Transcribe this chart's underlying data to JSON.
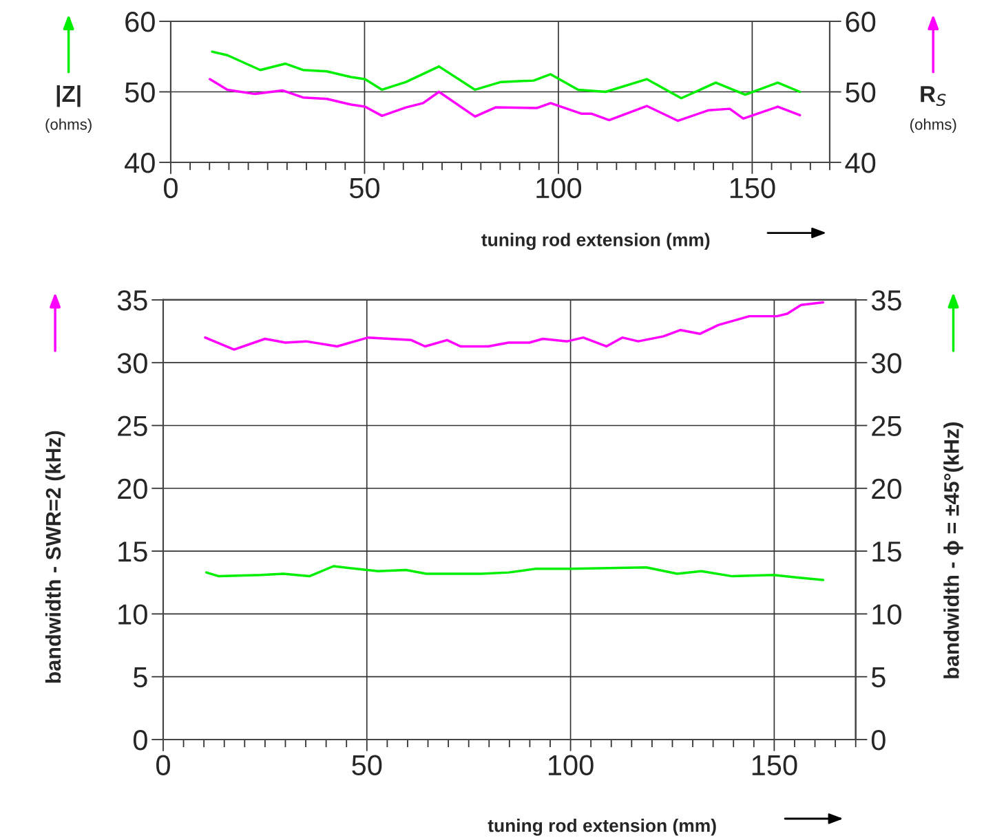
{
  "chart_data": [
    {
      "type": "line",
      "xlabel": "tuning rod extension (mm)",
      "ylabel": "|Z|\n(ohms)",
      "y2label": "R$_{S}$\n(ohms)",
      "grid": true,
      "xlim": [
        0,
        170
      ],
      "xticks": [
        0,
        {
          "value": 5,
          "label": null
        },
        {
          "value": 10,
          "label": null
        },
        {
          "value": 15,
          "label": null
        },
        {
          "value": 20,
          "label": null
        },
        {
          "value": 25,
          "label": null
        },
        {
          "value": 30,
          "label": null
        },
        {
          "value": 35,
          "label": null
        },
        {
          "value": 40,
          "label": null
        },
        {
          "value": 45,
          "label": null
        },
        50,
        {
          "value": 55,
          "label": null
        },
        {
          "value": 60,
          "label": null
        },
        {
          "value": 65,
          "label": null
        },
        {
          "value": 70,
          "label": null
        },
        {
          "value": 75,
          "label": null
        },
        {
          "value": 80,
          "label": null
        },
        {
          "value": 85,
          "label": null
        },
        {
          "value": 90,
          "label": null
        },
        {
          "value": 95,
          "label": null
        },
        100,
        {
          "value": 105,
          "label": null
        },
        {
          "value": 110,
          "label": null
        },
        {
          "value": 115,
          "label": null
        },
        {
          "value": 120,
          "label": null
        },
        {
          "value": 125,
          "label": null
        },
        {
          "value": 130,
          "label": null
        },
        {
          "value": 135,
          "label": null
        },
        {
          "value": 140,
          "label": null
        },
        {
          "value": 145,
          "label": null
        },
        150,
        {
          "value": 155,
          "label": null
        },
        {
          "value": 160,
          "label": null
        },
        {
          "value": 165,
          "label": null
        },
        {
          "value": 170,
          "label": null
        }
      ],
      "ylim": [
        40,
        60
      ],
      "yticks": [
        40,
        50,
        60
      ],
      "y2lim": [
        40,
        60
      ],
      "y2ticks": [
        40,
        50,
        60
      ],
      "series": [
        {
          "color": "#00ee00",
          "axis": "y",
          "x": [
            10.7,
            14.6,
            23.1,
            29.6,
            34.1,
            40.3,
            46.5,
            50.1,
            54.5,
            60.7,
            69.2,
            78.5,
            85.2,
            93.6,
            98.0,
            105.1,
            112.2,
            122.8,
            131.7,
            140.6,
            148.2,
            156.6,
            162.3
          ],
          "values": [
            55.7,
            55.2,
            53.1,
            54.0,
            53.1,
            52.9,
            52.1,
            51.8,
            50.3,
            51.4,
            53.6,
            50.3,
            51.4,
            51.6,
            52.5,
            50.3,
            50.0,
            51.8,
            49.1,
            51.3,
            49.6,
            51.3,
            50.0
          ]
        },
        {
          "color": "#ff00ff",
          "axis": "y2",
          "x": [
            10.1,
            14.6,
            21.7,
            28.8,
            34.1,
            40.3,
            46.5,
            50.1,
            54.5,
            60.7,
            65.1,
            69.2,
            78.5,
            83.8,
            94.4,
            98.0,
            106.0,
            108.6,
            113.1,
            122.8,
            130.8,
            138.8,
            144.2,
            147.7,
            156.6,
            162.3
          ],
          "values": [
            51.8,
            50.3,
            49.7,
            50.2,
            49.2,
            49.0,
            48.2,
            47.9,
            46.6,
            47.8,
            48.4,
            50.0,
            46.5,
            47.8,
            47.7,
            48.4,
            46.9,
            46.9,
            46.0,
            48.0,
            45.9,
            47.4,
            47.6,
            46.2,
            47.9,
            46.7
          ]
        }
      ]
    },
    {
      "type": "line",
      "xlabel": "tuning rod extension (mm)",
      "ylabel": "bandwidth - SWR=2 (kHz)",
      "y2label": "bandwidth - ϕ = ±45°(kHz)",
      "grid": true,
      "xlim": [
        0,
        170
      ],
      "xticks": [
        0,
        {
          "value": 5,
          "label": null
        },
        {
          "value": 10,
          "label": null
        },
        {
          "value": 15,
          "label": null
        },
        {
          "value": 20,
          "label": null
        },
        {
          "value": 25,
          "label": null
        },
        {
          "value": 30,
          "label": null
        },
        {
          "value": 35,
          "label": null
        },
        {
          "value": 40,
          "label": null
        },
        {
          "value": 45,
          "label": null
        },
        50,
        {
          "value": 55,
          "label": null
        },
        {
          "value": 60,
          "label": null
        },
        {
          "value": 65,
          "label": null
        },
        {
          "value": 70,
          "label": null
        },
        {
          "value": 75,
          "label": null
        },
        {
          "value": 80,
          "label": null
        },
        {
          "value": 85,
          "label": null
        },
        {
          "value": 90,
          "label": null
        },
        {
          "value": 95,
          "label": null
        },
        100,
        {
          "value": 105,
          "label": null
        },
        {
          "value": 110,
          "label": null
        },
        {
          "value": 115,
          "label": null
        },
        {
          "value": 120,
          "label": null
        },
        {
          "value": 125,
          "label": null
        },
        {
          "value": 130,
          "label": null
        },
        {
          "value": 135,
          "label": null
        },
        {
          "value": 140,
          "label": null
        },
        {
          "value": 145,
          "label": null
        },
        150,
        {
          "value": 155,
          "label": null
        },
        {
          "value": 160,
          "label": null
        },
        {
          "value": 165,
          "label": null
        },
        {
          "value": 170,
          "label": null
        }
      ],
      "ylim": [
        0,
        35
      ],
      "yticks": [
        0,
        5,
        10,
        15,
        20,
        25,
        30,
        35
      ],
      "y2lim": [
        0,
        35
      ],
      "y2ticks": [
        0,
        5,
        10,
        15,
        20,
        25,
        30,
        35
      ],
      "series": [
        {
          "color": "#ff00ff",
          "axis": "y",
          "x": [
            10.3,
            17.4,
            25.0,
            30.0,
            35.1,
            42.7,
            50.3,
            60.9,
            64.3,
            69.7,
            73.0,
            79.8,
            84.8,
            89.9,
            93.2,
            99.2,
            103.1,
            108.8,
            112.7,
            116.6,
            122.8,
            127.0,
            131.8,
            136.3,
            143.9,
            150.7,
            153.2,
            156.6,
            162.0
          ],
          "values": [
            32.0,
            31.05,
            31.9,
            31.6,
            31.7,
            31.3,
            32.0,
            31.8,
            31.3,
            31.8,
            31.3,
            31.3,
            31.6,
            31.6,
            31.9,
            31.7,
            32.0,
            31.3,
            32.0,
            31.7,
            32.1,
            32.6,
            32.3,
            33.0,
            33.7,
            33.7,
            33.9,
            34.6,
            34.8
          ]
        },
        {
          "color": "#00ee00",
          "axis": "y2",
          "x": [
            10.6,
            13.7,
            24.1,
            29.5,
            35.9,
            41.8,
            52.8,
            59.6,
            64.6,
            78.1,
            84.8,
            91.6,
            100.0,
            118.6,
            126.2,
            132.1,
            139.7,
            149.8,
            155.7,
            162.0
          ],
          "values": [
            13.3,
            13.0,
            13.1,
            13.2,
            13.0,
            13.8,
            13.4,
            13.5,
            13.2,
            13.2,
            13.3,
            13.6,
            13.6,
            13.7,
            13.2,
            13.4,
            13.0,
            13.1,
            12.9,
            12.7
          ]
        }
      ]
    }
  ]
}
